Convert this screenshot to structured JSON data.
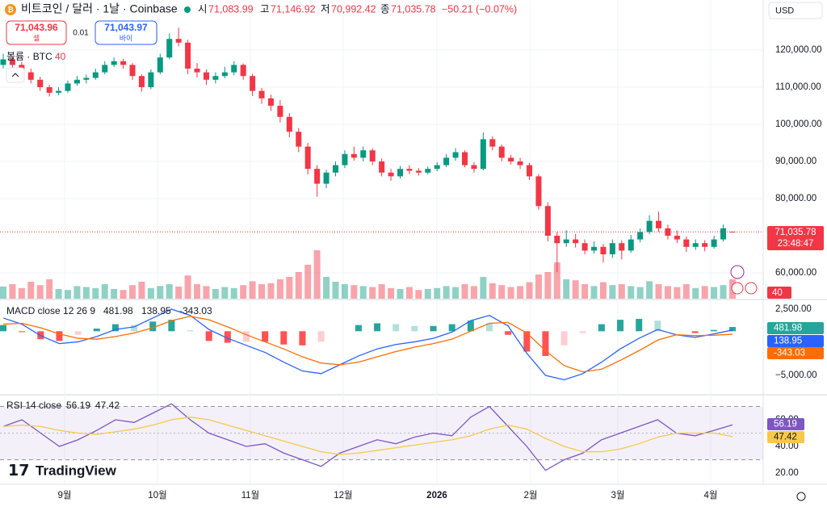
{
  "header": {
    "symbol": "비트코인 / 달러 · 1날 · Coinbase",
    "o_label": "시",
    "o": "71,083.99",
    "h_label": "고",
    "h": "71,146.92",
    "l_label": "저",
    "l": "70,992.42",
    "c_label": "종",
    "c": "71,035.78",
    "change": "−50.21 (−0.07%)",
    "sell_price": "71,043.96",
    "sell_label": "셀",
    "spread": "0.01",
    "buy_price": "71,043.97",
    "buy_label": "바이",
    "currency": "USD",
    "volume_legend": "볼륨 · BTC",
    "volume_value": "40",
    "last_price_label": "71,035.78",
    "countdown": "23:48:47",
    "brand": "TradingView"
  },
  "chart_data": [
    {
      "type": "candlestick",
      "up_color": "#089981",
      "down_color": "#f23645",
      "ohlc": [
        [
          116000,
          119000,
          115000,
          117500
        ],
        [
          117500,
          118000,
          115200,
          116000
        ],
        [
          116000,
          116800,
          113000,
          114000
        ],
        [
          114000,
          115000,
          111000,
          112000
        ],
        [
          112000,
          112800,
          109000,
          110000
        ],
        [
          110000,
          110600,
          107500,
          108500
        ],
        [
          108500,
          110000,
          107800,
          109000
        ],
        [
          109000,
          111800,
          108500,
          111000
        ],
        [
          111000,
          113000,
          110400,
          112000
        ],
        [
          112000,
          113400,
          111000,
          112500
        ],
        [
          112500,
          115000,
          112000,
          114000
        ],
        [
          114000,
          117000,
          113500,
          116000
        ],
        [
          116000,
          118000,
          115400,
          117000
        ],
        [
          117000,
          117600,
          115000,
          116000
        ],
        [
          116000,
          116500,
          112000,
          113000
        ],
        [
          113000,
          113500,
          108800,
          110000
        ],
        [
          110000,
          114800,
          109500,
          114000
        ],
        [
          114000,
          119000,
          113500,
          118000
        ],
        [
          118000,
          124500,
          117500,
          123000
        ],
        [
          123000,
          126000,
          121000,
          122000
        ],
        [
          122000,
          122800,
          113500,
          115000
        ],
        [
          115000,
          116500,
          112600,
          114000
        ],
        [
          114000,
          114800,
          110600,
          112000
        ],
        [
          112000,
          114000,
          111000,
          113000
        ],
        [
          113000,
          115500,
          112400,
          114000
        ],
        [
          114000,
          117000,
          113200,
          116000
        ],
        [
          116000,
          116400,
          112000,
          113000
        ],
        [
          113000,
          113600,
          107600,
          109000
        ],
        [
          109000,
          109800,
          105500,
          107000
        ],
        [
          107000,
          108000,
          103600,
          105000
        ],
        [
          105000,
          106500,
          100500,
          102000
        ],
        [
          102000,
          103000,
          96500,
          98000
        ],
        [
          98000,
          99000,
          92500,
          94000
        ],
        [
          94000,
          95000,
          86500,
          88000
        ],
        [
          88000,
          89000,
          80500,
          84000
        ],
        [
          84000,
          87800,
          82800,
          87000
        ],
        [
          87000,
          90000,
          86000,
          89000
        ],
        [
          89000,
          93000,
          88200,
          92000
        ],
        [
          92000,
          94000,
          90200,
          91000
        ],
        [
          91000,
          94000,
          90000,
          93000
        ],
        [
          93000,
          93600,
          89000,
          90000
        ],
        [
          90000,
          90800,
          86000,
          87000
        ],
        [
          87000,
          88000,
          84800,
          86000
        ],
        [
          86000,
          88800,
          85400,
          88000
        ],
        [
          88000,
          89000,
          86600,
          87500
        ],
        [
          87500,
          88200,
          86200,
          87000
        ],
        [
          87000,
          88600,
          86500,
          88000
        ],
        [
          88000,
          89800,
          87400,
          89000
        ],
        [
          89000,
          92000,
          88500,
          91000
        ],
        [
          91000,
          93600,
          90200,
          92500
        ],
        [
          92500,
          93000,
          88400,
          89000
        ],
        [
          89000,
          89800,
          87000,
          88000
        ],
        [
          88000,
          97800,
          87600,
          96000
        ],
        [
          96000,
          96800,
          93000,
          94000
        ],
        [
          94000,
          94600,
          90000,
          91000
        ],
        [
          91000,
          91800,
          89200,
          90000
        ],
        [
          90000,
          91000,
          88000,
          89000
        ],
        [
          89000,
          89600,
          85000,
          86000
        ],
        [
          86000,
          86600,
          77000,
          78000
        ],
        [
          78000,
          79000,
          68500,
          70000
        ],
        [
          70000,
          71000,
          60200,
          68000
        ],
        [
          68000,
          71500,
          67000,
          69000
        ],
        [
          69000,
          70500,
          66800,
          68000
        ],
        [
          68000,
          69000,
          65000,
          66000
        ],
        [
          66000,
          68500,
          65200,
          67000
        ],
        [
          67000,
          67800,
          62800,
          65000
        ],
        [
          65000,
          69000,
          64000,
          68000
        ],
        [
          68000,
          68800,
          63600,
          66000
        ],
        [
          66000,
          70200,
          65400,
          69000
        ],
        [
          69000,
          72000,
          68200,
          71000
        ],
        [
          71000,
          75500,
          70400,
          74000
        ],
        [
          74000,
          76500,
          71000,
          72000
        ],
        [
          72000,
          73000,
          69000,
          70000
        ],
        [
          70000,
          71400,
          68000,
          69000
        ],
        [
          69000,
          69800,
          65600,
          67000
        ],
        [
          67000,
          69000,
          66200,
          68000
        ],
        [
          68000,
          68800,
          65800,
          67000
        ],
        [
          67000,
          70000,
          66500,
          69000
        ],
        [
          69000,
          73000,
          68400,
          72000
        ],
        [
          71083.99,
          71146.92,
          70992.42,
          71035.78
        ]
      ],
      "volume": [
        25,
        30,
        22,
        35,
        28,
        40,
        20,
        18,
        26,
        24,
        22,
        30,
        20,
        18,
        28,
        35,
        22,
        26,
        30,
        25,
        48,
        30,
        26,
        20,
        24,
        22,
        28,
        36,
        30,
        32,
        40,
        45,
        55,
        70,
        100,
        45,
        35,
        30,
        28,
        26,
        24,
        30,
        22,
        20,
        24,
        18,
        20,
        22,
        26,
        24,
        30,
        26,
        45,
        32,
        28,
        24,
        26,
        34,
        50,
        55,
        75,
        40,
        38,
        30,
        26,
        34,
        28,
        30,
        26,
        24,
        36,
        30,
        26,
        24,
        30,
        22,
        26,
        24,
        28,
        40
      ],
      "vlim": [
        0,
        100
      ],
      "ylim": [
        53043,
        133478
      ],
      "yticks": [
        {
          "value": 60000,
          "label": "60,000.00"
        },
        {
          "value": 80000,
          "label": "80,000.00"
        },
        {
          "value": 90000,
          "label": "90,000.00"
        },
        {
          "value": 100000,
          "label": "100,000.00"
        },
        {
          "value": 110000,
          "label": "110,000.00"
        },
        {
          "value": 120000,
          "label": "120,000.00"
        }
      ],
      "xticks": [
        {
          "value": 6.65,
          "label": "9월"
        },
        {
          "value": 16.71,
          "label": "10월"
        },
        {
          "value": 26.77,
          "label": "11월"
        },
        {
          "value": 36.83,
          "label": "12월"
        },
        {
          "value": 46.98,
          "label": "2026"
        },
        {
          "value": 57.13,
          "label": "2월"
        },
        {
          "value": 66.58,
          "label": "3월"
        },
        {
          "value": 76.64,
          "label": "4월"
        }
      ]
    },
    {
      "type": "macd",
      "title": "MACD close 12 26 9",
      "series": [
        {
          "name": "histogram",
          "color": "#26a69a",
          "values": [
            700,
            -100,
            -900,
            -1100,
            -400,
            300,
            800,
            700,
            1100,
            1300,
            100,
            -1100,
            -1300,
            -1200,
            -1200,
            -1500,
            -1600,
            -1200,
            0,
            700,
            900,
            800,
            600,
            600,
            800,
            1200,
            900,
            -400,
            -2300,
            -2800,
            -1600,
            -200,
            800,
            1300,
            1400,
            1200,
            0,
            -200,
            150,
            481.98
          ]
        },
        {
          "name": "macd",
          "color": "#2962ff",
          "values": [
            1500,
            800,
            -500,
            -1400,
            -1200,
            -600,
            200,
            500,
            1500,
            2500,
            1800,
            200,
            -800,
            -1600,
            -2400,
            -3500,
            -4500,
            -4800,
            -3800,
            -2800,
            -2000,
            -1500,
            -1200,
            -800,
            -100,
            1200,
            1800,
            600,
            -2500,
            -5000,
            -5500,
            -4800,
            -3500,
            -2000,
            -800,
            200,
            -400,
            -700,
            -300,
            138.95
          ]
        },
        {
          "name": "signal",
          "color": "#ff6d00",
          "values": [
            800,
            900,
            400,
            -300,
            -800,
            -900,
            -600,
            -200,
            400,
            1200,
            1700,
            1300,
            500,
            -400,
            -1200,
            -2000,
            -2900,
            -3600,
            -3800,
            -3500,
            -2900,
            -2300,
            -1800,
            -1400,
            -900,
            0,
            900,
            1000,
            -200,
            -2200,
            -3900,
            -4600,
            -4300,
            -3300,
            -2200,
            -1000,
            -400,
            -500,
            -450,
            -343.03
          ]
        }
      ],
      "ylim": [
        -7104,
        3506
      ],
      "yticks": [
        {
          "value": -5000,
          "label": "−5,000.00"
        },
        {
          "value": 2500,
          "label": "2,500.00"
        }
      ]
    },
    {
      "type": "rsi",
      "title": "RSI 14 close",
      "series": [
        {
          "name": "rsi",
          "color": "#7e57c2",
          "values": [
            55,
            60,
            50,
            40,
            45,
            52,
            60,
            58,
            65,
            72,
            60,
            50,
            45,
            40,
            42,
            35,
            30,
            25,
            35,
            40,
            45,
            42,
            47,
            50,
            48,
            62,
            70,
            55,
            40,
            22,
            30,
            35,
            45,
            50,
            55,
            60,
            50,
            48,
            52,
            56.19
          ]
        },
        {
          "name": "rsi_ma",
          "color": "#f7c948",
          "values": [
            55,
            56,
            55,
            52,
            50,
            49,
            51,
            53,
            56,
            60,
            62,
            60,
            56,
            52,
            48,
            44,
            40,
            36,
            34,
            35,
            37,
            39,
            41,
            43,
            45,
            48,
            53,
            56,
            53,
            46,
            40,
            36,
            36,
            38,
            42,
            47,
            50,
            50,
            50,
            47.42
          ]
        }
      ],
      "levels": [
        70,
        50,
        30
      ],
      "ylim": [
        12.7,
        78.2
      ],
      "yticks": [
        {
          "value": 20,
          "label": "20.00"
        },
        {
          "value": 40,
          "label": "40.00"
        },
        {
          "value": 60,
          "label": "60.00"
        }
      ]
    }
  ]
}
